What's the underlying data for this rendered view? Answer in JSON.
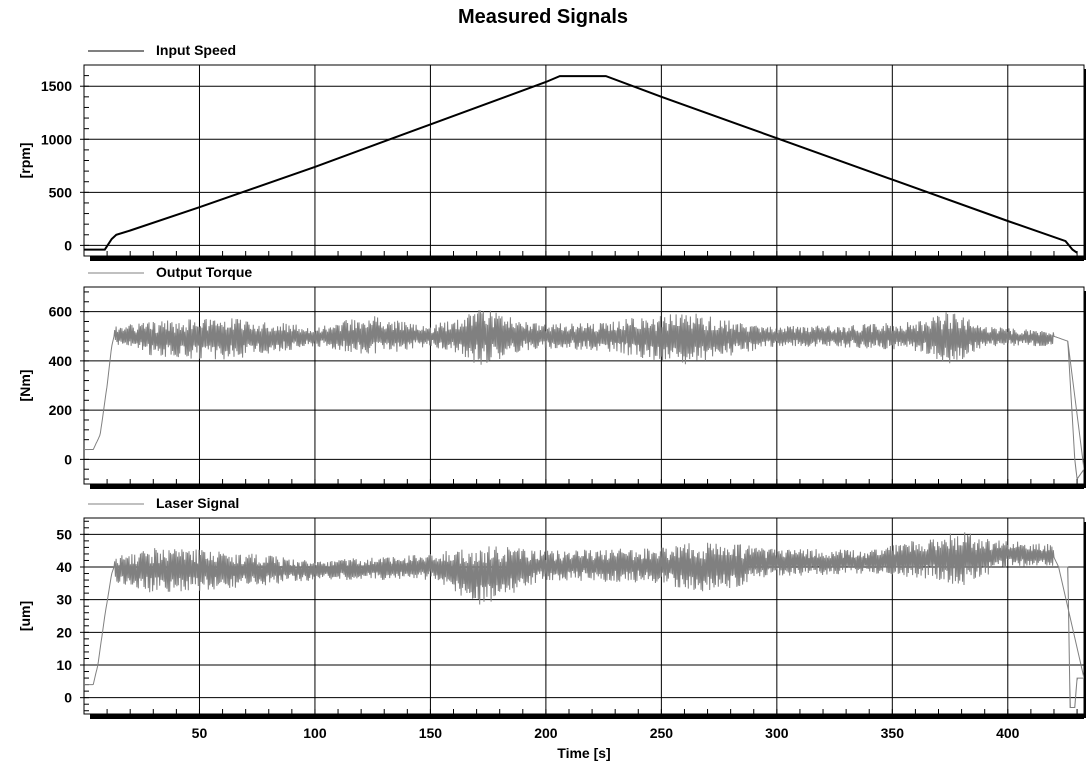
{
  "figure_title": "Measured Signals",
  "colors": {
    "grid": "#000000",
    "speed": "#000000",
    "torque": "#808080",
    "laser": "#808080",
    "shadow": "#000000",
    "tickbar": "#808080"
  },
  "chart_data": [
    {
      "type": "line",
      "series": [
        {
          "name": "Input Speed",
          "points": [
            [
              0,
              -40
            ],
            [
              9,
              -40
            ],
            [
              12,
              60
            ],
            [
              14,
              100
            ],
            [
              20,
              140
            ],
            [
              50,
              360
            ],
            [
              100,
              740
            ],
            [
              150,
              1140
            ],
            [
              200,
              1540
            ],
            [
              206,
              1595
            ],
            [
              226,
              1595
            ],
            [
              250,
              1400
            ],
            [
              300,
              1010
            ],
            [
              350,
              620
            ],
            [
              400,
              230
            ],
            [
              425,
              40
            ],
            [
              428,
              -40
            ],
            [
              430,
              -70
            ]
          ]
        }
      ],
      "ylabel": "[rpm]",
      "xlim": [
        0,
        433
      ],
      "ylim": [
        -100,
        1700
      ],
      "y_ticks": [
        0,
        500,
        1000,
        1500
      ],
      "y_ticklabels": [
        "0",
        "500",
        "1000",
        "1500"
      ],
      "grid": true,
      "legend": "top-left"
    },
    {
      "type": "line",
      "series": [
        {
          "name": "Output Torque",
          "baseline": [
            [
              0,
              40
            ],
            [
              4,
              40
            ],
            [
              7,
              100
            ],
            [
              10,
              300
            ],
            [
              12,
              460
            ],
            [
              13,
              500
            ],
            [
              420,
              500
            ],
            [
              426,
              480
            ],
            [
              429,
              0
            ],
            [
              430,
              -80
            ],
            [
              433,
              -40
            ]
          ],
          "band": [
            [
              13,
              470,
              540
            ],
            [
              30,
              420,
              560
            ],
            [
              60,
              400,
              580
            ],
            [
              100,
              460,
              540
            ],
            [
              125,
              420,
              590
            ],
            [
              150,
              460,
              540
            ],
            [
              172,
              380,
              620
            ],
            [
              190,
              440,
              560
            ],
            [
              200,
              450,
              550
            ],
            [
              225,
              440,
              560
            ],
            [
              260,
              380,
              600
            ],
            [
              300,
              460,
              540
            ],
            [
              340,
              450,
              550
            ],
            [
              360,
              440,
              560
            ],
            [
              376,
              380,
              610
            ],
            [
              390,
              460,
              540
            ],
            [
              420,
              460,
              520
            ]
          ]
        }
      ],
      "ylabel": "[Nm]",
      "xlim": [
        0,
        433
      ],
      "ylim": [
        -100,
        700
      ],
      "y_ticks": [
        0,
        200,
        400,
        600
      ],
      "y_ticklabels": [
        "0",
        "200",
        "400",
        "600"
      ],
      "grid": true,
      "legend": "top-left"
    },
    {
      "type": "line",
      "series": [
        {
          "name": "Laser Signal",
          "baseline": [
            [
              0,
              4
            ],
            [
              4,
              4
            ],
            [
              6,
              10
            ],
            [
              9,
              25
            ],
            [
              12,
              38
            ],
            [
              13,
              40
            ],
            [
              420,
              43
            ],
            [
              422,
              40
            ],
            [
              426,
              40
            ],
            [
              427,
              -3
            ],
            [
              429,
              -3
            ],
            [
              430,
              6
            ],
            [
              433,
              6
            ]
          ],
          "band": [
            [
              13,
              35,
              43
            ],
            [
              30,
              32,
              46
            ],
            [
              60,
              33,
              45
            ],
            [
              100,
              36,
              42
            ],
            [
              150,
              36,
              44
            ],
            [
              172,
              28,
              47
            ],
            [
              200,
              36,
              45
            ],
            [
              250,
              35,
              46
            ],
            [
              266,
              31,
              48
            ],
            [
              300,
              37,
              46
            ],
            [
              340,
              38,
              45
            ],
            [
              370,
              36,
              50
            ],
            [
              380,
              34,
              51
            ],
            [
              400,
              40,
              48
            ],
            [
              420,
              40,
              47
            ]
          ]
        }
      ],
      "xlabel": "Time [s]",
      "ylabel": "[um]",
      "xlim": [
        0,
        433
      ],
      "ylim": [
        -5,
        55
      ],
      "y_ticks": [
        0,
        10,
        20,
        30,
        40,
        50
      ],
      "y_ticklabels": [
        "0",
        "10",
        "20",
        "30",
        "40",
        "50"
      ],
      "x_ticks": [
        50,
        100,
        150,
        200,
        250,
        300,
        350,
        400
      ],
      "x_ticklabels": [
        "50",
        "100",
        "150",
        "200",
        "250",
        "300",
        "350",
        "400"
      ],
      "grid": true,
      "legend": "top-left"
    }
  ]
}
